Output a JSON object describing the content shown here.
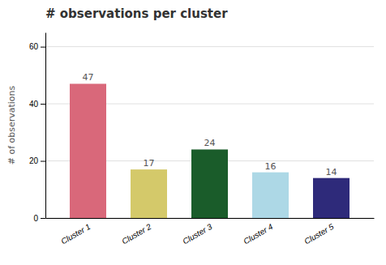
{
  "chart_data": {
    "type": "bar",
    "title": "# observations per cluster",
    "ylabel": "# of observations",
    "categories": [
      "Cluster 1",
      "Cluster 2",
      "Cluster 3",
      "Cluster 4",
      "Cluster 5"
    ],
    "values": [
      47,
      17,
      24,
      16,
      14
    ],
    "colors": [
      "#d9687a",
      "#d4c96a",
      "#1a5c2a",
      "#add8e6",
      "#2e2a7a"
    ],
    "ylim": [
      0,
      65
    ],
    "yticks": [
      0,
      20,
      40,
      60
    ],
    "grid": true,
    "data_labels": true
  }
}
